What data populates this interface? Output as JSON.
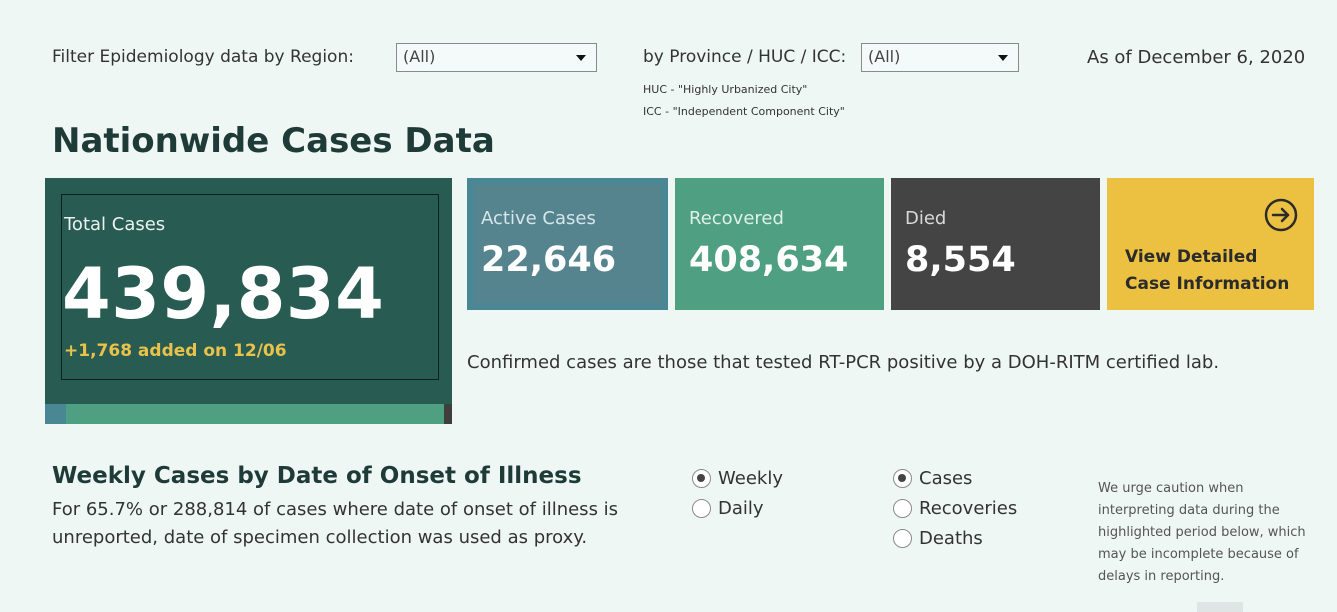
{
  "filters": {
    "region_label": "Filter Epidemiology data by Region:",
    "region_value": "(All)",
    "province_label": "by Province / HUC / ICC:",
    "province_value": "(All)",
    "huc_note": "HUC - \"Highly Urbanized City\"",
    "icc_note": "ICC - \"Independent Component City\""
  },
  "as_of": "As of December 6, 2020",
  "nationwide": {
    "title": "Nationwide Cases Data",
    "total_label": "Total Cases",
    "total_value": "439,834",
    "added": "+1,768 added on 12/06",
    "active_label": "Active Cases",
    "active_value": "22,646",
    "recovered_label": "Recovered",
    "recovered_value": "408,634",
    "died_label": "Died",
    "died_value": "8,554",
    "view_line1": "View Detailed",
    "view_line2": "Case Information",
    "confirmed_note": "Confirmed cases are those that tested RT-PCR positive by a DOH-RITM certified lab."
  },
  "weekly": {
    "title": "Weekly Cases by Date of Onset of Illness",
    "desc_line1": "For 65.7% or 288,814 of cases where date of onset of illness is",
    "desc_line2": "unreported, date of specimen collection was used as proxy.",
    "period_options": [
      {
        "label": "Weekly",
        "selected": true
      },
      {
        "label": "Daily",
        "selected": false
      }
    ],
    "measure_options": [
      {
        "label": "Cases",
        "selected": true
      },
      {
        "label": "Recoveries",
        "selected": false
      },
      {
        "label": "Deaths",
        "selected": false
      }
    ],
    "caution_lines": [
      "We urge caution when",
      "interpreting data during the",
      "highlighted period below, which",
      "may be incomplete because of",
      "delays in reporting."
    ]
  },
  "icons": {
    "dropdown": "chevron-down-icon",
    "view_details": "arrow-right-circle-icon"
  },
  "colors": {
    "total_bg": "#285b52",
    "active_bg": "#4a8794",
    "recovered_bg": "#4f9f82",
    "died_bg": "#444444",
    "view_bg": "#ecc142",
    "added_text": "#e8c24a"
  }
}
